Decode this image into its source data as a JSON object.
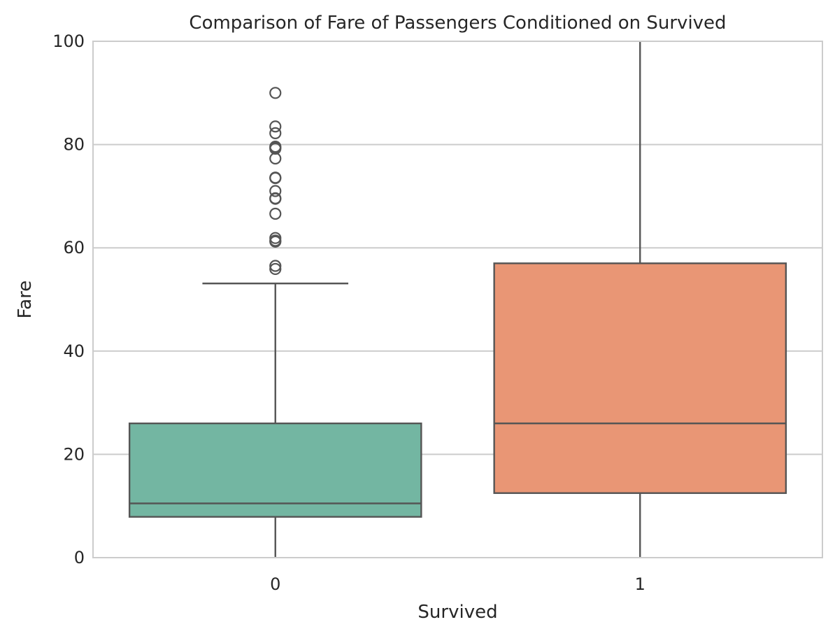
{
  "chart_data": {
    "type": "box",
    "title": "Comparison of Fare of Passengers Conditioned on Survived",
    "xlabel": "Survived",
    "ylabel": "Fare",
    "categories": [
      "0",
      "1"
    ],
    "ylim": [
      0,
      100
    ],
    "yticks": [
      "0",
      "20",
      "40",
      "60",
      "80",
      "100"
    ],
    "grid": true,
    "boxes": [
      {
        "category": "0",
        "color": "#73b6a2",
        "whisker_low": 0,
        "q1": 7.9,
        "median": 10.5,
        "q3": 26.0,
        "whisker_high": 53.1,
        "outliers": [
          55.9,
          56.5,
          61.2,
          61.4,
          61.9,
          66.6,
          69.5,
          69.6,
          71.0,
          73.5,
          73.6,
          77.3,
          79.2,
          79.4,
          79.6,
          82.2,
          83.5,
          90.0
        ]
      },
      {
        "category": "1",
        "color": "#e99675",
        "whisker_low": 0,
        "q1": 12.5,
        "median": 26.0,
        "q3": 57.0,
        "whisker_high": 100,
        "outliers": []
      }
    ]
  }
}
